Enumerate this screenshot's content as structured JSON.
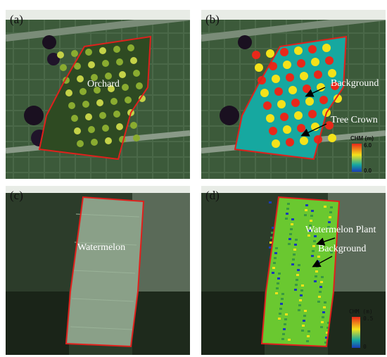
{
  "panels": {
    "a": {
      "letter": "(a)",
      "label": "Orchard"
    },
    "b": {
      "letter": "(b)",
      "label_background": "Background",
      "label_crown": "Tree Crown",
      "colorbar": {
        "title": "CHM (m)",
        "max": "6.0",
        "min": "0.0"
      }
    },
    "c": {
      "letter": "(c)",
      "label": "Watermelon"
    },
    "d": {
      "letter": "(d)",
      "label_plant": "Watermelon Plant",
      "label_background": "Background",
      "colorbar": {
        "title": "CHM (m)",
        "max": "0.5",
        "min": "0"
      }
    }
  },
  "colors": {
    "boundary": "#e0201c",
    "chm_high": "#e8281a",
    "chm_mid": "#f4e21a",
    "chm_low": "#16a8a0",
    "chm_min": "#1a3cb8"
  }
}
